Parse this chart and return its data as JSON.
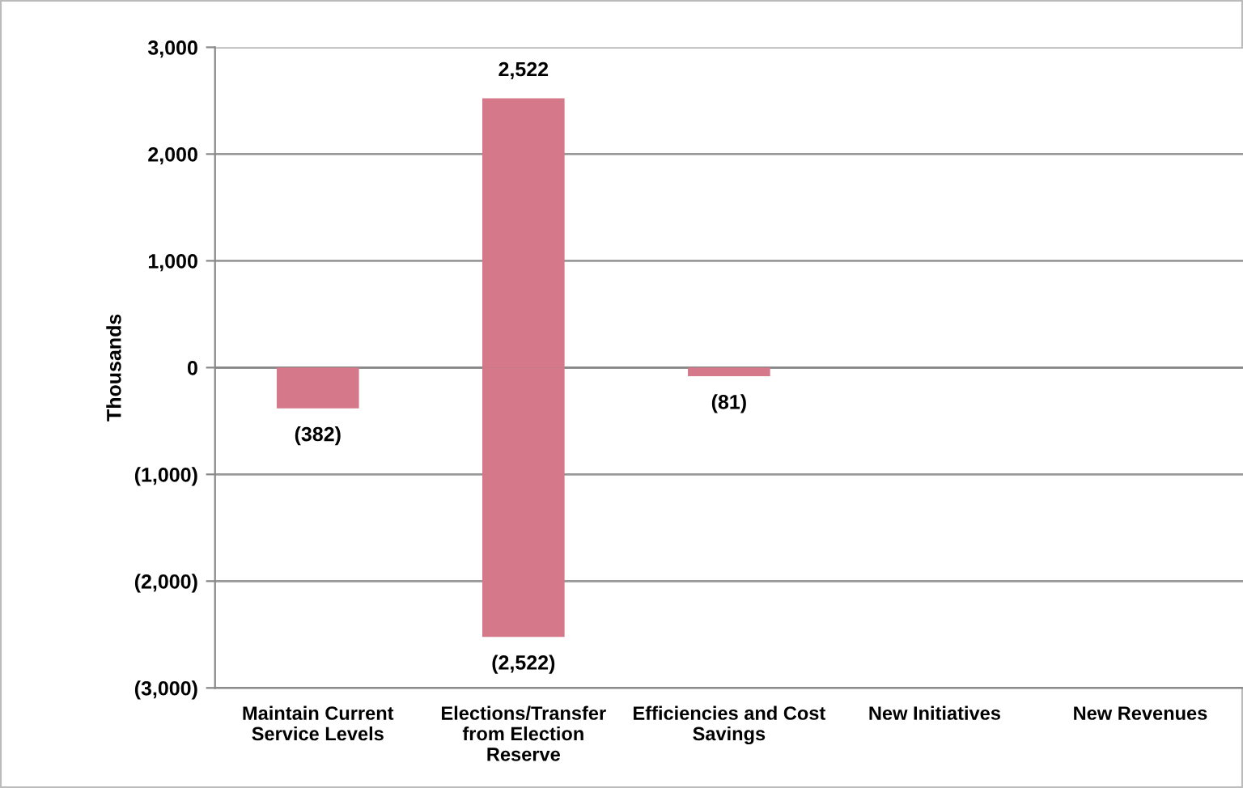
{
  "chart_data": {
    "type": "bar",
    "ylabel": "Thousands",
    "categories": [
      "Maintain Current\nService Levels",
      "Elections/Transfer\nfrom Election\nReserve",
      "Efficiencies and Cost\nSavings",
      "New Initiatives",
      "New Revenues"
    ],
    "stacked": true,
    "series": [
      {
        "color": "#d4788a",
        "values": [
          -382,
          2522,
          -81,
          null,
          null
        ],
        "value_labels": [
          "(382)",
          "2,522",
          "(81)",
          null,
          null
        ]
      },
      {
        "color": "#d4788a",
        "values": [
          null,
          -2522,
          null,
          null,
          null
        ],
        "value_labels": [
          null,
          "(2,522)",
          null,
          null,
          null
        ]
      }
    ],
    "ylim": [
      -3000,
      3000
    ],
    "yticks": [
      {
        "value": -3000,
        "label": "(3,000)"
      },
      {
        "value": -2000,
        "label": "(2,000)"
      },
      {
        "value": -1000,
        "label": "(1,000)"
      },
      {
        "value": 0,
        "label": "0"
      },
      {
        "value": 1000,
        "label": "1,000"
      },
      {
        "value": 2000,
        "label": "2,000"
      },
      {
        "value": 3000,
        "label": "3,000"
      }
    ],
    "grid": "y",
    "legend": false
  }
}
